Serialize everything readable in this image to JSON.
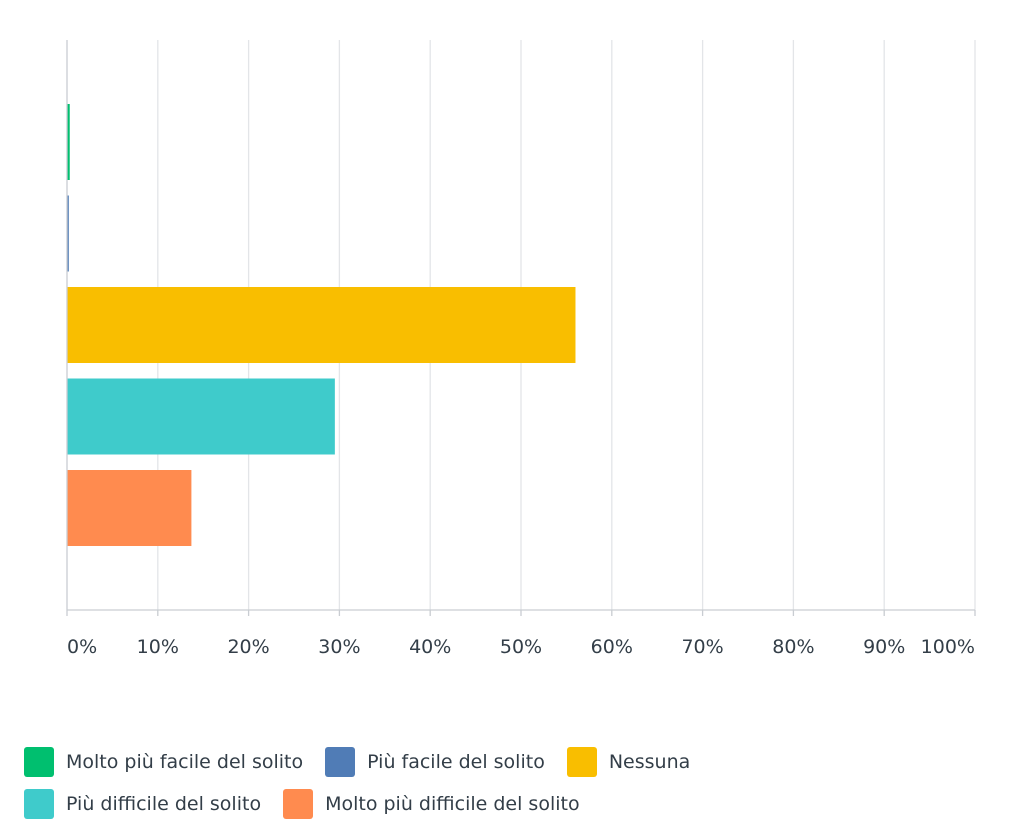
{
  "chart_data": {
    "type": "bar",
    "orientation": "horizontal",
    "categories": [
      "Molto più facile del solito",
      "Più facile del solito",
      "Nessuna",
      "Più difficile del solito",
      "Molto più difficile del solito"
    ],
    "values": [
      0.3,
      0.2,
      56,
      29.5,
      13.7
    ],
    "colors": [
      "#00bf6f",
      "#507cb6",
      "#f9be00",
      "#3fcbcb",
      "#ff8b4f"
    ],
    "xlim": [
      0,
      100
    ],
    "x_ticks": [
      "0%",
      "10%",
      "20%",
      "30%",
      "40%",
      "50%",
      "60%",
      "70%",
      "80%",
      "90%",
      "100%"
    ],
    "grid": true,
    "legend_position": "bottom-left",
    "title": "",
    "xlabel": "",
    "ylabel": ""
  }
}
